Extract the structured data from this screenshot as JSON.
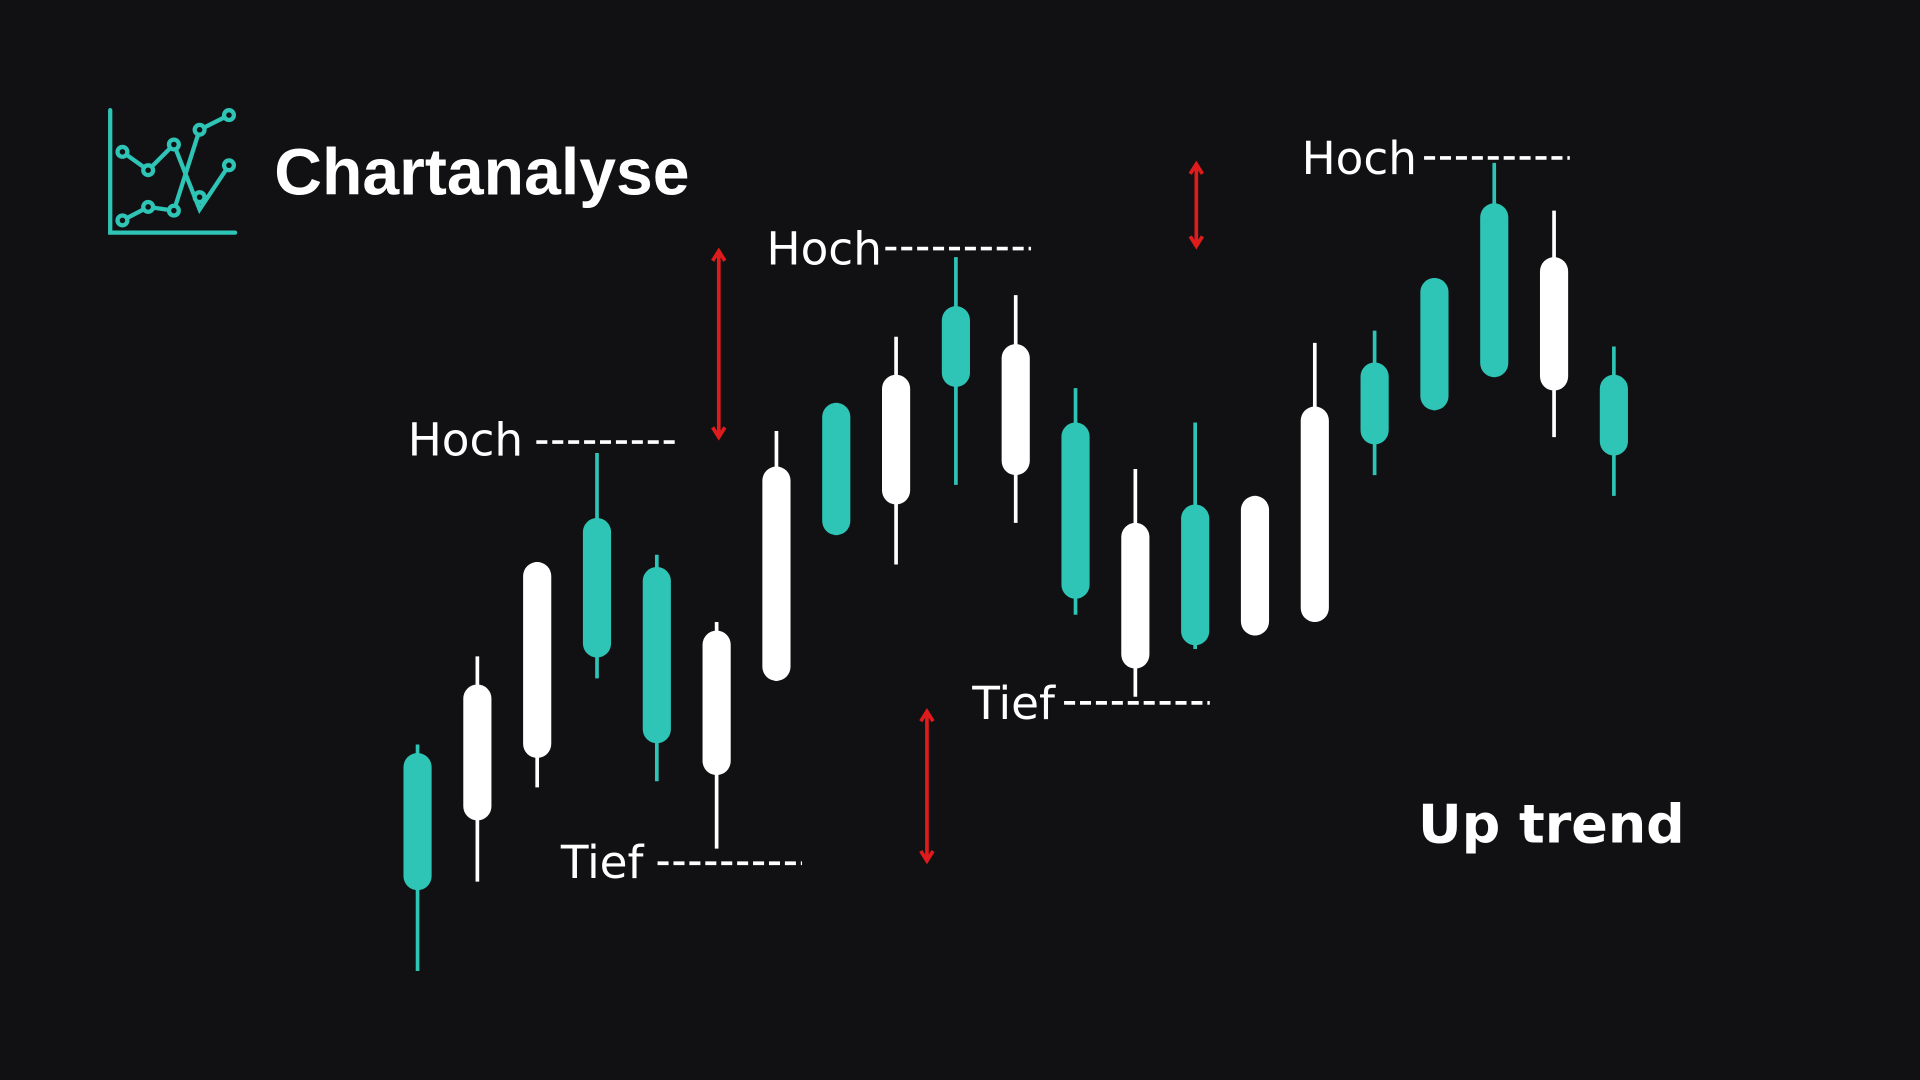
{
  "header": {
    "title": "Chartanalyse",
    "logo_icon": "line-chart-icon"
  },
  "colors": {
    "background": "#111113",
    "bullish": "#2ec4b6",
    "bearish": "#ffffff",
    "arrow": "#e01b1b",
    "text": "#ffffff"
  },
  "chart_data": {
    "type": "candlestick",
    "title": "Chartanalyse",
    "annotation": "Up trend",
    "candles": [
      {
        "color": "teal",
        "high": 274,
        "open": 155,
        "close": 267,
        "low": 89
      },
      {
        "color": "white",
        "high": 346,
        "open": 323,
        "close": 212,
        "low": 162
      },
      {
        "color": "white",
        "high": 423,
        "open": 423,
        "close": 263,
        "low": 239
      },
      {
        "color": "teal",
        "high": 512,
        "open": 345,
        "close": 459,
        "low": 328
      },
      {
        "color": "teal",
        "high": 429,
        "open": 275,
        "close": 419,
        "low": 244
      },
      {
        "color": "white",
        "high": 374,
        "open": 367,
        "close": 249,
        "low": 189
      },
      {
        "color": "white",
        "high": 530,
        "open": 501,
        "close": 326,
        "low": 326
      },
      {
        "color": "teal",
        "high": 553,
        "open": 445,
        "close": 553,
        "low": 445
      },
      {
        "color": "white",
        "high": 607,
        "open": 576,
        "close": 470,
        "low": 421
      },
      {
        "color": "teal",
        "high": 672,
        "open": 566,
        "close": 632,
        "low": 486
      },
      {
        "color": "white",
        "high": 641,
        "open": 601,
        "close": 494,
        "low": 455
      },
      {
        "color": "teal",
        "high": 565,
        "open": 393,
        "close": 537,
        "low": 380
      },
      {
        "color": "white",
        "high": 499,
        "open": 455,
        "close": 336,
        "low": 313
      },
      {
        "color": "teal",
        "high": 537,
        "open": 355,
        "close": 470,
        "low": 352
      },
      {
        "color": "white",
        "high": 477,
        "open": 477,
        "close": 363,
        "low": 363
      },
      {
        "color": "white",
        "high": 602,
        "open": 550,
        "close": 374,
        "low": 374
      },
      {
        "color": "teal",
        "high": 612,
        "open": 519,
        "close": 586,
        "low": 494
      },
      {
        "color": "teal",
        "high": 655,
        "open": 547,
        "close": 655,
        "low": 547
      },
      {
        "color": "teal",
        "high": 749,
        "open": 574,
        "close": 716,
        "low": 574
      },
      {
        "color": "white",
        "high": 710,
        "open": 672,
        "close": 563,
        "low": 525
      },
      {
        "color": "teal",
        "high": 599,
        "open": 510,
        "close": 576,
        "low": 477
      }
    ],
    "levels": [
      {
        "label": "Hoch",
        "type": "high",
        "value": 523
      },
      {
        "label": "Hoch",
        "type": "high",
        "value": 679
      },
      {
        "label": "Hoch",
        "type": "high",
        "value": 753
      },
      {
        "label": "Tief",
        "type": "low",
        "value": 177
      },
      {
        "label": "Tief",
        "type": "low",
        "value": 308
      }
    ],
    "arrows": [
      {
        "from": 679,
        "to": 523
      },
      {
        "from": 750,
        "to": 679
      },
      {
        "from": 303,
        "to": 177
      }
    ]
  }
}
